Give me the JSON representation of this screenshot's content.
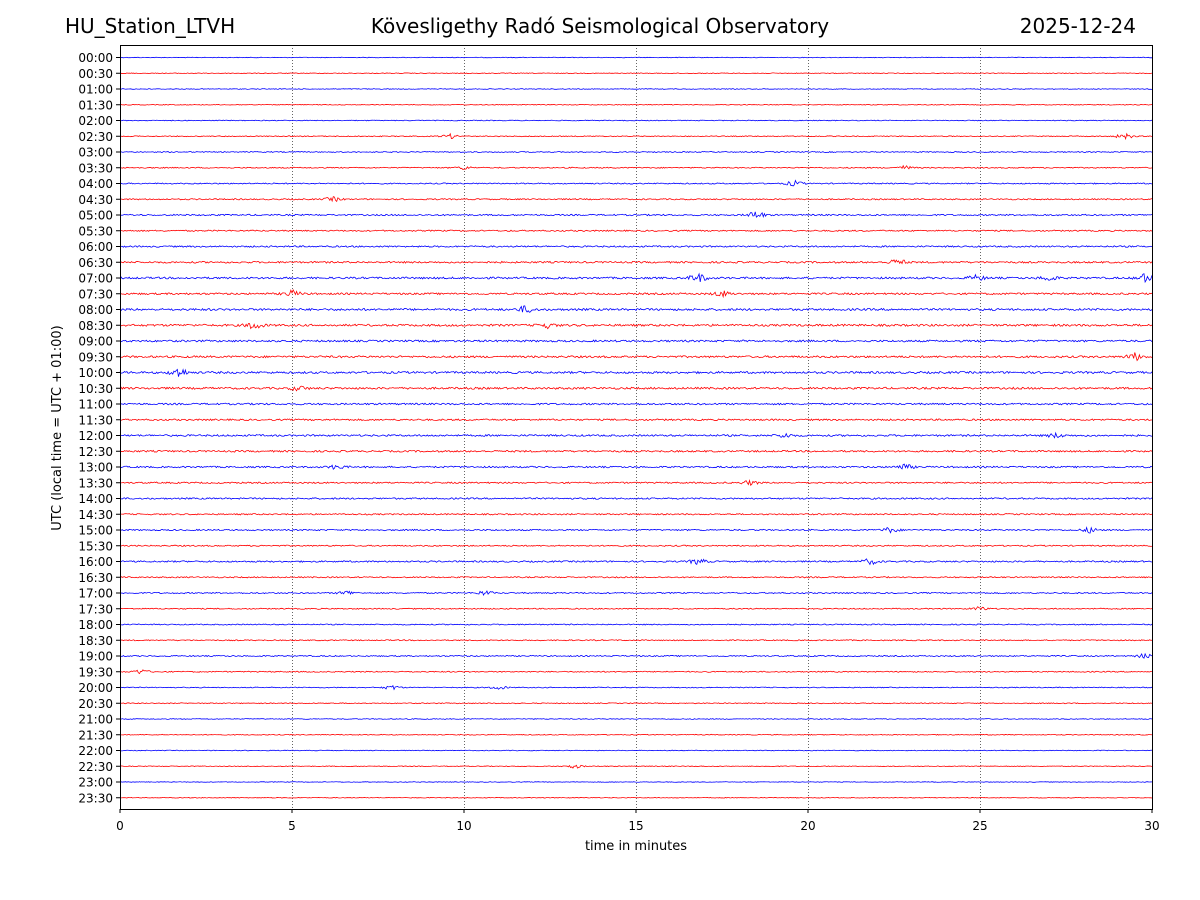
{
  "header": {
    "station": "HU_Station_LTVH",
    "observatory": "Kövesligethy Radó Seismological Observatory",
    "date": "2025-12-24"
  },
  "chart_data": {
    "type": "line",
    "title": "Kövesligethy Radó Seismological Observatory",
    "xlabel": "time in minutes",
    "ylabel": "UTC (local time = UTC + 01:00)",
    "xlim": [
      0,
      30
    ],
    "x_ticks": [
      0,
      5,
      10,
      15,
      20,
      25,
      30
    ],
    "grid": "vertical dotted lines at x = 5, 10, 15, 20, 25",
    "trace_colors": [
      "#0000ff",
      "#ff0000"
    ],
    "rows": [
      "00:00",
      "00:30",
      "01:00",
      "01:30",
      "02:00",
      "02:30",
      "03:00",
      "03:30",
      "04:00",
      "04:30",
      "05:00",
      "05:30",
      "06:00",
      "06:30",
      "07:00",
      "07:30",
      "08:00",
      "08:30",
      "09:00",
      "09:30",
      "10:00",
      "10:30",
      "11:00",
      "11:30",
      "12:00",
      "12:30",
      "13:00",
      "13:30",
      "14:00",
      "14:30",
      "15:00",
      "15:30",
      "16:00",
      "16:30",
      "17:00",
      "17:30",
      "18:00",
      "18:30",
      "19:00",
      "19:30",
      "20:00",
      "20:30",
      "21:00",
      "21:30",
      "22:00",
      "22:30",
      "23:00",
      "23:30"
    ],
    "noise_level": [
      0.35,
      0.4,
      0.4,
      0.4,
      0.45,
      0.5,
      0.55,
      0.6,
      0.65,
      0.7,
      0.8,
      0.75,
      0.85,
      0.95,
      1.05,
      1.0,
      1.15,
      1.15,
      1.05,
      1.1,
      1.15,
      1.1,
      0.95,
      0.9,
      1.0,
      0.95,
      0.9,
      0.8,
      0.85,
      0.75,
      0.75,
      0.7,
      0.85,
      0.7,
      0.7,
      0.6,
      0.6,
      0.6,
      0.65,
      0.6,
      0.5,
      0.5,
      0.45,
      0.45,
      0.4,
      0.4,
      0.35,
      0.35
    ],
    "events": [
      {
        "row": "02:30",
        "minute": 9.6,
        "amp": 2.0
      },
      {
        "row": "02:30",
        "minute": 29.2,
        "amp": 2.5
      },
      {
        "row": "03:30",
        "minute": 10.0,
        "amp": 1.5
      },
      {
        "row": "03:30",
        "minute": 22.8,
        "amp": 1.8
      },
      {
        "row": "04:00",
        "minute": 19.6,
        "amp": 2.5
      },
      {
        "row": "04:30",
        "minute": 6.2,
        "amp": 2.0
      },
      {
        "row": "05:00",
        "minute": 18.5,
        "amp": 3.5
      },
      {
        "row": "06:30",
        "minute": 22.6,
        "amp": 2.8
      },
      {
        "row": "07:00",
        "minute": 16.8,
        "amp": 4.0
      },
      {
        "row": "07:00",
        "minute": 24.9,
        "amp": 2.5
      },
      {
        "row": "07:00",
        "minute": 27.0,
        "amp": 2.5
      },
      {
        "row": "07:00",
        "minute": 29.8,
        "amp": 4.0
      },
      {
        "row": "07:30",
        "minute": 5.0,
        "amp": 3.0
      },
      {
        "row": "07:30",
        "minute": 17.5,
        "amp": 2.5
      },
      {
        "row": "08:00",
        "minute": 11.8,
        "amp": 3.0
      },
      {
        "row": "08:30",
        "minute": 3.9,
        "amp": 3.5
      },
      {
        "row": "08:30",
        "minute": 12.4,
        "amp": 2.5
      },
      {
        "row": "09:30",
        "minute": 29.5,
        "amp": 3.5
      },
      {
        "row": "10:00",
        "minute": 1.7,
        "amp": 4.5
      },
      {
        "row": "10:30",
        "minute": 5.2,
        "amp": 2.0
      },
      {
        "row": "12:00",
        "minute": 19.3,
        "amp": 2.0
      },
      {
        "row": "12:00",
        "minute": 27.2,
        "amp": 2.0
      },
      {
        "row": "13:00",
        "minute": 6.3,
        "amp": 2.0
      },
      {
        "row": "13:00",
        "minute": 22.8,
        "amp": 2.5
      },
      {
        "row": "13:30",
        "minute": 18.3,
        "amp": 2.0
      },
      {
        "row": "15:00",
        "minute": 22.4,
        "amp": 2.5
      },
      {
        "row": "15:00",
        "minute": 28.2,
        "amp": 2.5
      },
      {
        "row": "16:00",
        "minute": 16.8,
        "amp": 2.5
      },
      {
        "row": "16:00",
        "minute": 21.8,
        "amp": 2.5
      },
      {
        "row": "17:00",
        "minute": 6.6,
        "amp": 2.0
      },
      {
        "row": "17:00",
        "minute": 10.6,
        "amp": 2.0
      },
      {
        "row": "17:30",
        "minute": 25.0,
        "amp": 1.8
      },
      {
        "row": "19:00",
        "minute": 29.8,
        "amp": 2.0
      },
      {
        "row": "19:30",
        "minute": 0.6,
        "amp": 2.0
      },
      {
        "row": "20:00",
        "minute": 7.9,
        "amp": 2.0
      },
      {
        "row": "20:00",
        "minute": 11.0,
        "amp": 1.8
      },
      {
        "row": "22:30",
        "minute": 13.2,
        "amp": 1.8
      }
    ]
  }
}
